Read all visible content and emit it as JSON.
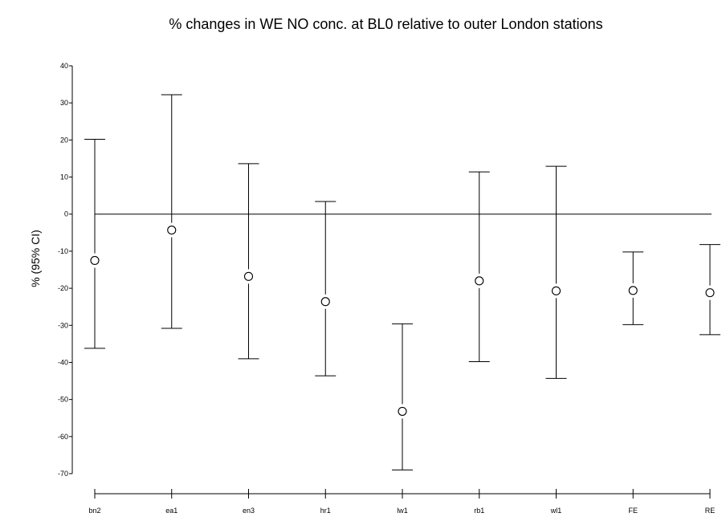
{
  "chart_data": {
    "type": "scatter",
    "title": "% changes in WE NO conc. at BL0 relative to outer London stations",
    "xlabel": "",
    "ylabel": "% (95% CI)",
    "ylim": [
      -75,
      40
    ],
    "yticks": [
      40,
      30,
      20,
      10,
      0,
      -10,
      -20,
      -30,
      -40,
      -50,
      -60,
      -70
    ],
    "reference_line": 0,
    "grid": false,
    "categories": [
      "bn2",
      "ea1",
      "en3",
      "hr1",
      "lw1",
      "rb1",
      "wl1",
      "FE",
      "RE"
    ],
    "series": [
      {
        "estimate": [
          -12.5,
          -4.3,
          -16.8,
          -23.6,
          -53.2,
          -18.0,
          -20.7,
          -20.6,
          -21.2
        ],
        "lower": [
          -36.2,
          -30.8,
          -39.0,
          -43.6,
          -69.0,
          -39.8,
          -44.3,
          -29.8,
          -32.5
        ],
        "upper": [
          20.2,
          32.2,
          13.6,
          3.4,
          -29.6,
          11.4,
          12.9,
          -10.2,
          -8.2
        ]
      }
    ]
  }
}
